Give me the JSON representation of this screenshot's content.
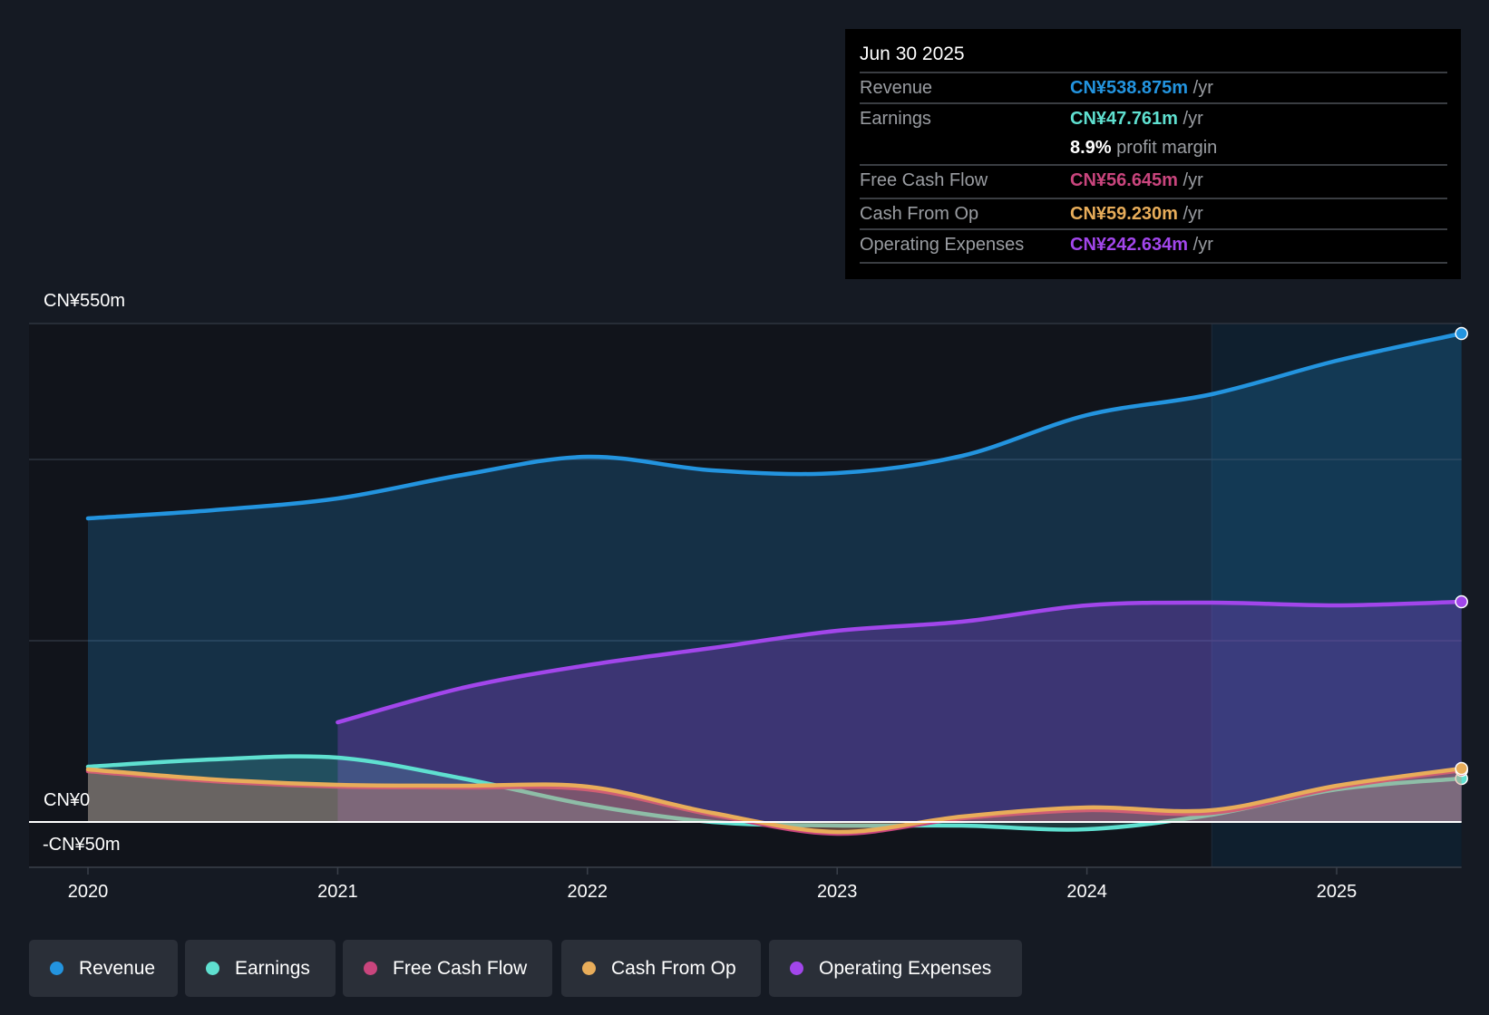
{
  "tooltip": {
    "date": "Jun 30 2025",
    "rows": [
      {
        "label": "Revenue",
        "value": "CN¥538.875m",
        "unit": "/yr",
        "color": "#2394df"
      },
      {
        "label": "Earnings",
        "value": "CN¥47.761m",
        "unit": "/yr",
        "color": "#5fe0d0"
      },
      {
        "label": "",
        "value": "8.9%",
        "unit": "profit margin",
        "color": "#ffffff"
      },
      {
        "label": "Free Cash Flow",
        "value": "CN¥56.645m",
        "unit": "/yr",
        "color": "#c9457d"
      },
      {
        "label": "Cash From Op",
        "value": "CN¥59.230m",
        "unit": "/yr",
        "color": "#e8ad5a"
      },
      {
        "label": "Operating Expenses",
        "value": "CN¥242.634m",
        "unit": "/yr",
        "color": "#a246eb"
      }
    ]
  },
  "chart_data": {
    "type": "area",
    "ylabel_top": "CN¥550m",
    "ylabel_zero": "CN¥0",
    "ylabel_bottom": "-CN¥50m",
    "ylim": [
      -50,
      550
    ],
    "xlim": [
      2019.77,
      2025.5
    ],
    "gridlines": [
      200,
      400,
      550
    ],
    "forecast_start": 2024.5,
    "x_ticks": [
      "2020",
      "2021",
      "2022",
      "2023",
      "2024",
      "2025"
    ],
    "x_tick_values": [
      2020,
      2021,
      2022,
      2023,
      2024,
      2025
    ],
    "series": [
      {
        "name": "Revenue",
        "color": "#2394df",
        "x": [
          2020,
          2020.5,
          2021,
          2021.5,
          2022,
          2022.5,
          2023,
          2023.5,
          2024,
          2024.5,
          2025,
          2025.5
        ],
        "values": [
          335,
          344,
          357,
          383,
          403,
          388,
          385,
          404,
          449,
          472,
          509,
          539
        ]
      },
      {
        "name": "Operating Expenses",
        "color": "#a246eb",
        "x": [
          2021,
          2021.5,
          2022,
          2022.5,
          2023,
          2023.5,
          2024,
          2024.5,
          2025,
          2025.5
        ],
        "values": [
          110,
          148,
          173,
          192,
          211,
          221,
          239,
          242,
          239,
          243
        ]
      },
      {
        "name": "Earnings",
        "color": "#5fe0d0",
        "x": [
          2020,
          2020.5,
          2021,
          2021.5,
          2022,
          2022.5,
          2023,
          2023.5,
          2024,
          2024.5,
          2025,
          2025.5
        ],
        "values": [
          61,
          69,
          71,
          48,
          19,
          0,
          -4,
          -4,
          -8,
          8,
          36,
          48
        ]
      },
      {
        "name": "Free Cash Flow",
        "color": "#c9457d",
        "x": [
          2020,
          2020.5,
          2021,
          2021.5,
          2022,
          2022.5,
          2023,
          2023.5,
          2024,
          2024.5,
          2025,
          2025.5
        ],
        "values": [
          56,
          45,
          39,
          38,
          36,
          8,
          -13,
          4,
          13,
          10,
          38,
          57
        ]
      },
      {
        "name": "Cash From Op",
        "color": "#e8ad5a",
        "x": [
          2020,
          2020.5,
          2021,
          2021.5,
          2022,
          2022.5,
          2023,
          2023.5,
          2024,
          2024.5,
          2025,
          2025.5
        ],
        "values": [
          58,
          47,
          41,
          40,
          39,
          10,
          -11,
          6,
          16,
          13,
          40,
          59
        ]
      }
    ]
  },
  "legend": [
    {
      "label": "Revenue",
      "color": "#2394df"
    },
    {
      "label": "Earnings",
      "color": "#5fe0d0"
    },
    {
      "label": "Free Cash Flow",
      "color": "#c9457d"
    },
    {
      "label": "Cash From Op",
      "color": "#e8ad5a"
    },
    {
      "label": "Operating Expenses",
      "color": "#a246eb"
    }
  ]
}
